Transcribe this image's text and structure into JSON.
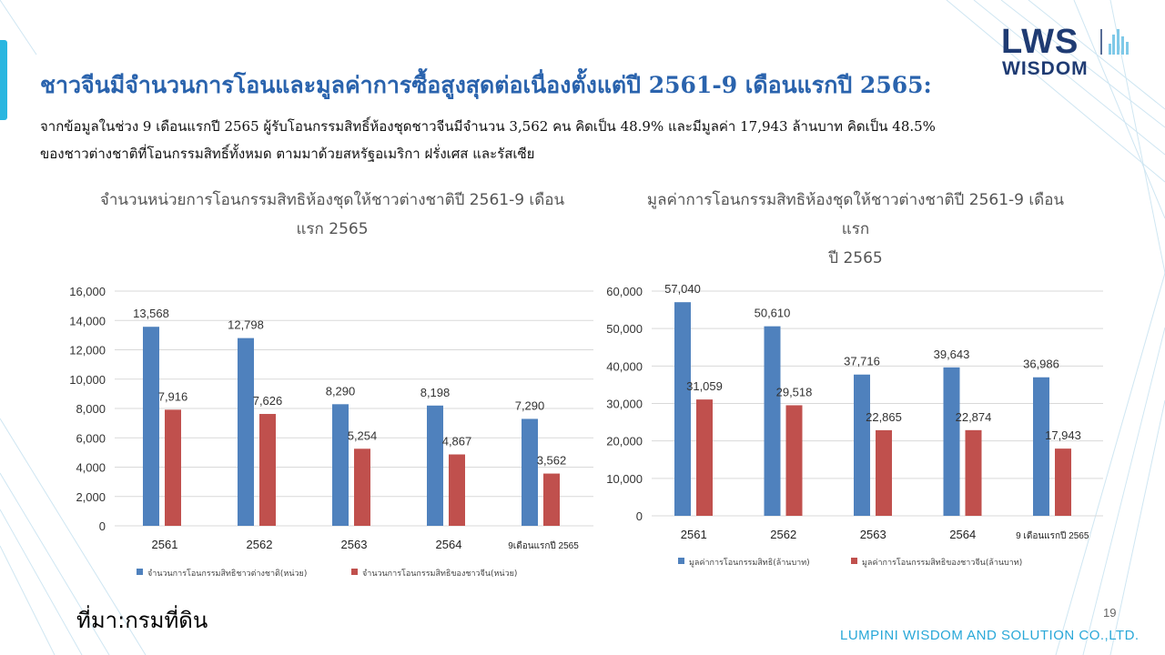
{
  "logo": {
    "brand": "LWS",
    "sub": "WISDOM"
  },
  "headline": "ชาวจีนมีจำนวนการโอนและมูลค่าการซื้อสูงสุดต่อเนื่องตั้งแต่ปี 2561-9 เดือนแรกปี 2565:",
  "summary": "จากข้อมูลในช่วง 9 เดือนแรกปี 2565 ผู้รับโอนกรรมสิทธิ์ห้องชุดชาวจีนมีจำนวน 3,562 คน คิดเป็น 48.9% และมีมูลค่า 17,943 ล้านบาท คิดเป็น 48.5% ของชาวต่างชาติที่โอนกรรมสิทธิ์ทั้งหมด ตามมาด้วยสหรัฐอเมริกา ฝรั่งเศส และรัสเซีย",
  "colors": {
    "blue": "#4f81bd",
    "red": "#c0504d",
    "accent": "#29b6e0",
    "brand": "#1f3b73"
  },
  "chart_data": [
    {
      "type": "bar",
      "title_line1": "จำนวนหน่วยการโอนกรรมสิทธิห้องชุดให้ชาวต่างชาติปี  2561-9  เดือน",
      "title_line2": "แรก 2565",
      "categories": [
        "2561",
        "2562",
        "2563",
        "2564",
        "9เดือนแรกปี 2565"
      ],
      "series": [
        {
          "name": "จำนวนการโอนกรรมสิทธิชาวต่างชาติ(หน่วย)",
          "values": [
            13568,
            12798,
            8290,
            8198,
            7290
          ],
          "color": "#4f81bd"
        },
        {
          "name": "จำนวนการโอนกรรมสิทธิของชาวจีน(หน่วย)",
          "values": [
            7916,
            7626,
            5254,
            4867,
            3562
          ],
          "color": "#c0504d"
        }
      ],
      "ylim": [
        0,
        16000
      ],
      "yticks": [
        0,
        2000,
        4000,
        6000,
        8000,
        10000,
        12000,
        14000,
        16000
      ],
      "grid": true,
      "legend": "bottom"
    },
    {
      "type": "bar",
      "title_line1": "มูลค่าการโอนกรรมสิทธิห้องชุดให้ชาวต่างชาติปี  2561-9  เดือนแรก",
      "title_line2": "ปี 2565",
      "categories": [
        "2561",
        "2562",
        "2563",
        "2564",
        "9 เดือนแรกปี 2565"
      ],
      "series": [
        {
          "name": "มูลค่าการโอนกรรมสิทธิ(ล้านบาท)",
          "values": [
            57040,
            50610,
            37716,
            39643,
            36986
          ],
          "color": "#4f81bd"
        },
        {
          "name": "มูลค่าการโอนกรรมสิทธิของชาวจีน(ล้านบาท)",
          "values": [
            31059,
            29518,
            22865,
            22874,
            17943
          ],
          "color": "#c0504d"
        }
      ],
      "ylim": [
        0,
        60000
      ],
      "yticks": [
        0,
        10000,
        20000,
        30000,
        40000,
        50000,
        60000
      ],
      "grid": true,
      "legend": "bottom"
    }
  ],
  "source": "ที่มา:กรมที่ดิน",
  "page_number": "19",
  "company": "LUMPINI WISDOM AND SOLUTION CO.,LTD."
}
